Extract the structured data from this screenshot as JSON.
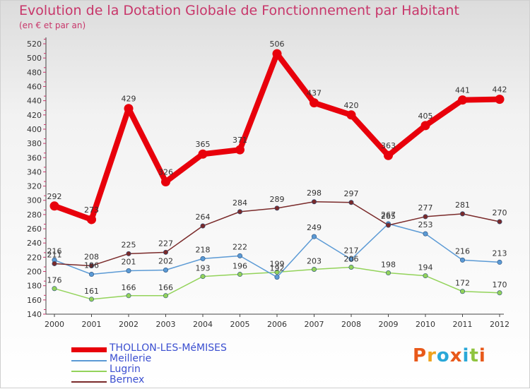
{
  "header": {
    "title": "Evolution de la Dotation Globale de Fonctionnement par Habitant",
    "subtitle": "(en € et par an)"
  },
  "logo": {
    "text": "Proxiti",
    "colors": [
      "#e8591a",
      "#f0a21d",
      "#2aa8d8",
      "#e8591a",
      "#2aa8d8",
      "#8fc43f",
      "#e8591a"
    ]
  },
  "chart_data": {
    "type": "line",
    "title": "Evolution de la Dotation Globale de Fonctionnement par Habitant",
    "subtitle": "(en € et par an)",
    "x": [
      "2000",
      "2001",
      "2002",
      "2003",
      "2004",
      "2005",
      "2006",
      "2007",
      "2008",
      "2009",
      "2010",
      "2011",
      "2012"
    ],
    "ylim": [
      140,
      520
    ],
    "yticks": [
      140,
      160,
      180,
      200,
      220,
      240,
      260,
      280,
      300,
      320,
      340,
      360,
      380,
      400,
      420,
      440,
      460,
      480,
      500,
      520
    ],
    "grid": false,
    "legend_position": "bottom-left",
    "series": [
      {
        "name": "THOLLON-LES-MéMISES",
        "color": "#e8000b",
        "values": [
          292,
          273,
          429,
          326,
          365,
          371,
          506,
          437,
          420,
          363,
          405,
          441,
          442
        ]
      },
      {
        "name": "Meillerie",
        "color": "#5b9ad5",
        "values": [
          216,
          196,
          201,
          202,
          218,
          222,
          192,
          249,
          217,
          267,
          253,
          216,
          213
        ]
      },
      {
        "name": "Lugrin",
        "color": "#93d35a",
        "values": [
          176,
          161,
          166,
          166,
          193,
          196,
          199,
          203,
          206,
          198,
          194,
          172,
          170
        ]
      },
      {
        "name": "Bernex",
        "color": "#7a2a2a",
        "values": [
          211,
          208,
          225,
          227,
          264,
          284,
          289,
          298,
          297,
          265,
          277,
          281,
          270
        ]
      }
    ]
  }
}
